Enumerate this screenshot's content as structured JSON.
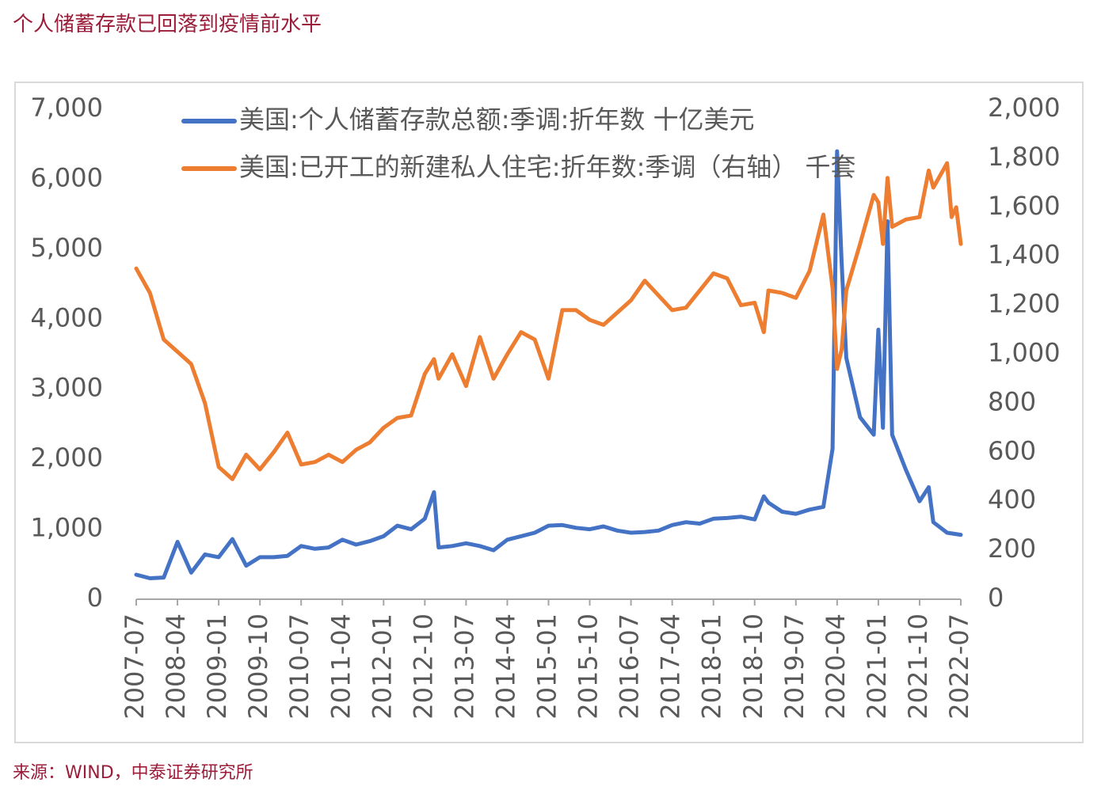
{
  "title": "个人储蓄存款已回落到疫情前水平",
  "source": "来源：WIND，中泰证券研究所",
  "colors": {
    "series_blue": "#4472c4",
    "series_orange": "#ed7d31",
    "axis": "#a6a6a6",
    "text": "#595959",
    "title": "#9b1d3a"
  },
  "chart_data": {
    "type": "line",
    "grid": false,
    "legend_placement": "top-center",
    "x_tick_labels": [
      "2007-07",
      "2008-04",
      "2009-01",
      "2009-10",
      "2010-07",
      "2011-04",
      "2012-01",
      "2012-10",
      "2013-07",
      "2014-04",
      "2015-01",
      "2015-10",
      "2016-07",
      "2017-04",
      "2018-01",
      "2018-10",
      "2019-07",
      "2020-04",
      "2021-01",
      "2021-10",
      "2022-07"
    ],
    "y_left": {
      "ticks": [
        "0",
        "1,000",
        "2,000",
        "3,000",
        "4,000",
        "5,000",
        "6,000",
        "7,000"
      ],
      "range": [
        0,
        7000
      ]
    },
    "y_right": {
      "ticks": [
        "0",
        "200",
        "400",
        "600",
        "800",
        "1,000",
        "1,200",
        "1,400",
        "1,600",
        "1,800",
        "2,000"
      ],
      "range": [
        0,
        2000
      ]
    },
    "series": [
      {
        "name": "美国:个人储蓄存款总额:季调:折年数 十亿美元",
        "axis": "left",
        "points": [
          [
            "2007-07",
            350
          ],
          [
            "2007-10",
            300
          ],
          [
            "2008-01",
            310
          ],
          [
            "2008-04",
            820
          ],
          [
            "2008-07",
            380
          ],
          [
            "2008-10",
            640
          ],
          [
            "2009-01",
            600
          ],
          [
            "2009-04",
            860
          ],
          [
            "2009-07",
            480
          ],
          [
            "2009-10",
            600
          ],
          [
            "2010-01",
            600
          ],
          [
            "2010-04",
            620
          ],
          [
            "2010-07",
            760
          ],
          [
            "2010-10",
            720
          ],
          [
            "2011-01",
            740
          ],
          [
            "2011-04",
            850
          ],
          [
            "2011-07",
            780
          ],
          [
            "2011-10",
            830
          ],
          [
            "2012-01",
            900
          ],
          [
            "2012-04",
            1050
          ],
          [
            "2012-07",
            1000
          ],
          [
            "2012-10",
            1150
          ],
          [
            "2012-12",
            1530
          ],
          [
            "2013-01",
            740
          ],
          [
            "2013-04",
            760
          ],
          [
            "2013-07",
            800
          ],
          [
            "2013-10",
            760
          ],
          [
            "2014-01",
            700
          ],
          [
            "2014-04",
            850
          ],
          [
            "2014-07",
            900
          ],
          [
            "2014-10",
            950
          ],
          [
            "2015-01",
            1050
          ],
          [
            "2015-04",
            1060
          ],
          [
            "2015-07",
            1020
          ],
          [
            "2015-10",
            1000
          ],
          [
            "2016-01",
            1040
          ],
          [
            "2016-04",
            980
          ],
          [
            "2016-07",
            950
          ],
          [
            "2016-10",
            960
          ],
          [
            "2017-01",
            980
          ],
          [
            "2017-04",
            1060
          ],
          [
            "2017-07",
            1100
          ],
          [
            "2017-10",
            1080
          ],
          [
            "2018-01",
            1150
          ],
          [
            "2018-04",
            1160
          ],
          [
            "2018-07",
            1180
          ],
          [
            "2018-10",
            1140
          ],
          [
            "2018-12",
            1470
          ],
          [
            "2019-01",
            1380
          ],
          [
            "2019-04",
            1250
          ],
          [
            "2019-07",
            1220
          ],
          [
            "2019-10",
            1280
          ],
          [
            "2020-01",
            1320
          ],
          [
            "2020-03",
            2150
          ],
          [
            "2020-04",
            6400
          ],
          [
            "2020-05",
            4800
          ],
          [
            "2020-06",
            3450
          ],
          [
            "2020-09",
            2600
          ],
          [
            "2020-12",
            2350
          ],
          [
            "2021-01",
            3850
          ],
          [
            "2021-02",
            2450
          ],
          [
            "2021-03",
            5400
          ],
          [
            "2021-04",
            2350
          ],
          [
            "2021-07",
            1850
          ],
          [
            "2021-10",
            1400
          ],
          [
            "2021-12",
            1600
          ],
          [
            "2022-01",
            1100
          ],
          [
            "2022-04",
            950
          ],
          [
            "2022-07",
            920
          ]
        ]
      },
      {
        "name": "美国:已开工的新建私人住宅:折年数:季调（右轴） 千套",
        "axis": "right",
        "points": [
          [
            "2007-07",
            1350
          ],
          [
            "2007-10",
            1250
          ],
          [
            "2008-01",
            1060
          ],
          [
            "2008-04",
            1010
          ],
          [
            "2008-07",
            960
          ],
          [
            "2008-10",
            800
          ],
          [
            "2009-01",
            540
          ],
          [
            "2009-04",
            490
          ],
          [
            "2009-07",
            590
          ],
          [
            "2009-10",
            530
          ],
          [
            "2010-01",
            600
          ],
          [
            "2010-04",
            680
          ],
          [
            "2010-07",
            550
          ],
          [
            "2010-10",
            560
          ],
          [
            "2011-01",
            590
          ],
          [
            "2011-04",
            560
          ],
          [
            "2011-07",
            610
          ],
          [
            "2011-10",
            640
          ],
          [
            "2012-01",
            700
          ],
          [
            "2012-04",
            740
          ],
          [
            "2012-07",
            750
          ],
          [
            "2012-10",
            920
          ],
          [
            "2012-12",
            980
          ],
          [
            "2013-01",
            900
          ],
          [
            "2013-04",
            1000
          ],
          [
            "2013-07",
            870
          ],
          [
            "2013-10",
            1070
          ],
          [
            "2014-01",
            900
          ],
          [
            "2014-04",
            1000
          ],
          [
            "2014-07",
            1090
          ],
          [
            "2014-10",
            1060
          ],
          [
            "2015-01",
            900
          ],
          [
            "2015-04",
            1180
          ],
          [
            "2015-07",
            1180
          ],
          [
            "2015-10",
            1140
          ],
          [
            "2016-01",
            1120
          ],
          [
            "2016-04",
            1170
          ],
          [
            "2016-07",
            1220
          ],
          [
            "2016-10",
            1300
          ],
          [
            "2017-01",
            1240
          ],
          [
            "2017-04",
            1180
          ],
          [
            "2017-07",
            1190
          ],
          [
            "2017-10",
            1260
          ],
          [
            "2018-01",
            1330
          ],
          [
            "2018-04",
            1310
          ],
          [
            "2018-07",
            1200
          ],
          [
            "2018-10",
            1210
          ],
          [
            "2018-12",
            1090
          ],
          [
            "2019-01",
            1260
          ],
          [
            "2019-04",
            1250
          ],
          [
            "2019-07",
            1230
          ],
          [
            "2019-10",
            1340
          ],
          [
            "2020-01",
            1570
          ],
          [
            "2020-03",
            1270
          ],
          [
            "2020-04",
            940
          ],
          [
            "2020-05",
            1020
          ],
          [
            "2020-06",
            1260
          ],
          [
            "2020-09",
            1450
          ],
          [
            "2020-12",
            1650
          ],
          [
            "2021-01",
            1620
          ],
          [
            "2021-02",
            1450
          ],
          [
            "2021-03",
            1720
          ],
          [
            "2021-04",
            1520
          ],
          [
            "2021-07",
            1550
          ],
          [
            "2021-10",
            1560
          ],
          [
            "2021-12",
            1750
          ],
          [
            "2022-01",
            1680
          ],
          [
            "2022-04",
            1780
          ],
          [
            "2022-05",
            1560
          ],
          [
            "2022-06",
            1600
          ],
          [
            "2022-07",
            1450
          ]
        ]
      }
    ]
  }
}
